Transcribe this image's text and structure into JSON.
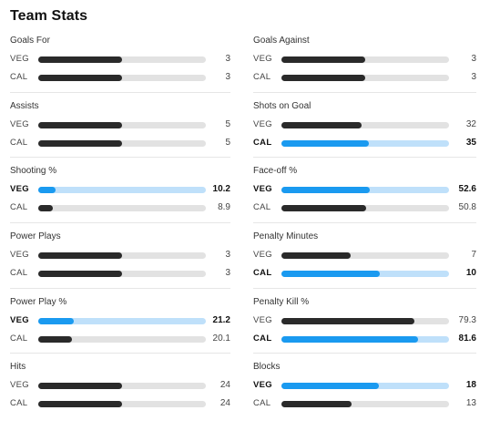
{
  "title": "Team Stats",
  "left_stats": [
    {
      "name": "Goals For",
      "rows": [
        {
          "team": "VEG",
          "value": "3",
          "fraction": 0.5,
          "lead": false
        },
        {
          "team": "CAL",
          "value": "3",
          "fraction": 0.5,
          "lead": false
        }
      ]
    },
    {
      "name": "Assists",
      "rows": [
        {
          "team": "VEG",
          "value": "5",
          "fraction": 0.5,
          "lead": false
        },
        {
          "team": "CAL",
          "value": "5",
          "fraction": 0.5,
          "lead": false
        }
      ]
    },
    {
      "name": "Shooting %",
      "rows": [
        {
          "team": "VEG",
          "value": "10.2",
          "fraction": 0.102,
          "lead": true
        },
        {
          "team": "CAL",
          "value": "8.9",
          "fraction": 0.089,
          "lead": false
        }
      ]
    },
    {
      "name": "Power Plays",
      "rows": [
        {
          "team": "VEG",
          "value": "3",
          "fraction": 0.5,
          "lead": false
        },
        {
          "team": "CAL",
          "value": "3",
          "fraction": 0.5,
          "lead": false
        }
      ]
    },
    {
      "name": "Power Play %",
      "rows": [
        {
          "team": "VEG",
          "value": "21.2",
          "fraction": 0.212,
          "lead": true
        },
        {
          "team": "CAL",
          "value": "20.1",
          "fraction": 0.201,
          "lead": false
        }
      ]
    },
    {
      "name": "Hits",
      "rows": [
        {
          "team": "VEG",
          "value": "24",
          "fraction": 0.5,
          "lead": false
        },
        {
          "team": "CAL",
          "value": "24",
          "fraction": 0.5,
          "lead": false
        }
      ]
    }
  ],
  "right_stats": [
    {
      "name": "Goals Against",
      "rows": [
        {
          "team": "VEG",
          "value": "3",
          "fraction": 0.5,
          "lead": false
        },
        {
          "team": "CAL",
          "value": "3",
          "fraction": 0.5,
          "lead": false
        }
      ]
    },
    {
      "name": "Shots on Goal",
      "rows": [
        {
          "team": "VEG",
          "value": "32",
          "fraction": 0.478,
          "lead": false
        },
        {
          "team": "CAL",
          "value": "35",
          "fraction": 0.522,
          "lead": true
        }
      ]
    },
    {
      "name": "Face-off %",
      "rows": [
        {
          "team": "VEG",
          "value": "52.6",
          "fraction": 0.526,
          "lead": true
        },
        {
          "team": "CAL",
          "value": "50.8",
          "fraction": 0.508,
          "lead": false
        }
      ]
    },
    {
      "name": "Penalty Minutes",
      "rows": [
        {
          "team": "VEG",
          "value": "7",
          "fraction": 0.412,
          "lead": false
        },
        {
          "team": "CAL",
          "value": "10",
          "fraction": 0.588,
          "lead": true
        }
      ]
    },
    {
      "name": "Penalty Kill %",
      "rows": [
        {
          "team": "VEG",
          "value": "79.3",
          "fraction": 0.793,
          "lead": false
        },
        {
          "team": "CAL",
          "value": "81.6",
          "fraction": 0.816,
          "lead": true
        }
      ]
    },
    {
      "name": "Blocks",
      "rows": [
        {
          "team": "VEG",
          "value": "18",
          "fraction": 0.581,
          "lead": true
        },
        {
          "team": "CAL",
          "value": "13",
          "fraction": 0.419,
          "lead": false
        }
      ]
    }
  ],
  "colors": {
    "leader_fill": "#1a9af0",
    "leader_track": "#bfe0fa",
    "normal_fill": "#2a2a2a",
    "normal_track": "#e2e2e2"
  }
}
